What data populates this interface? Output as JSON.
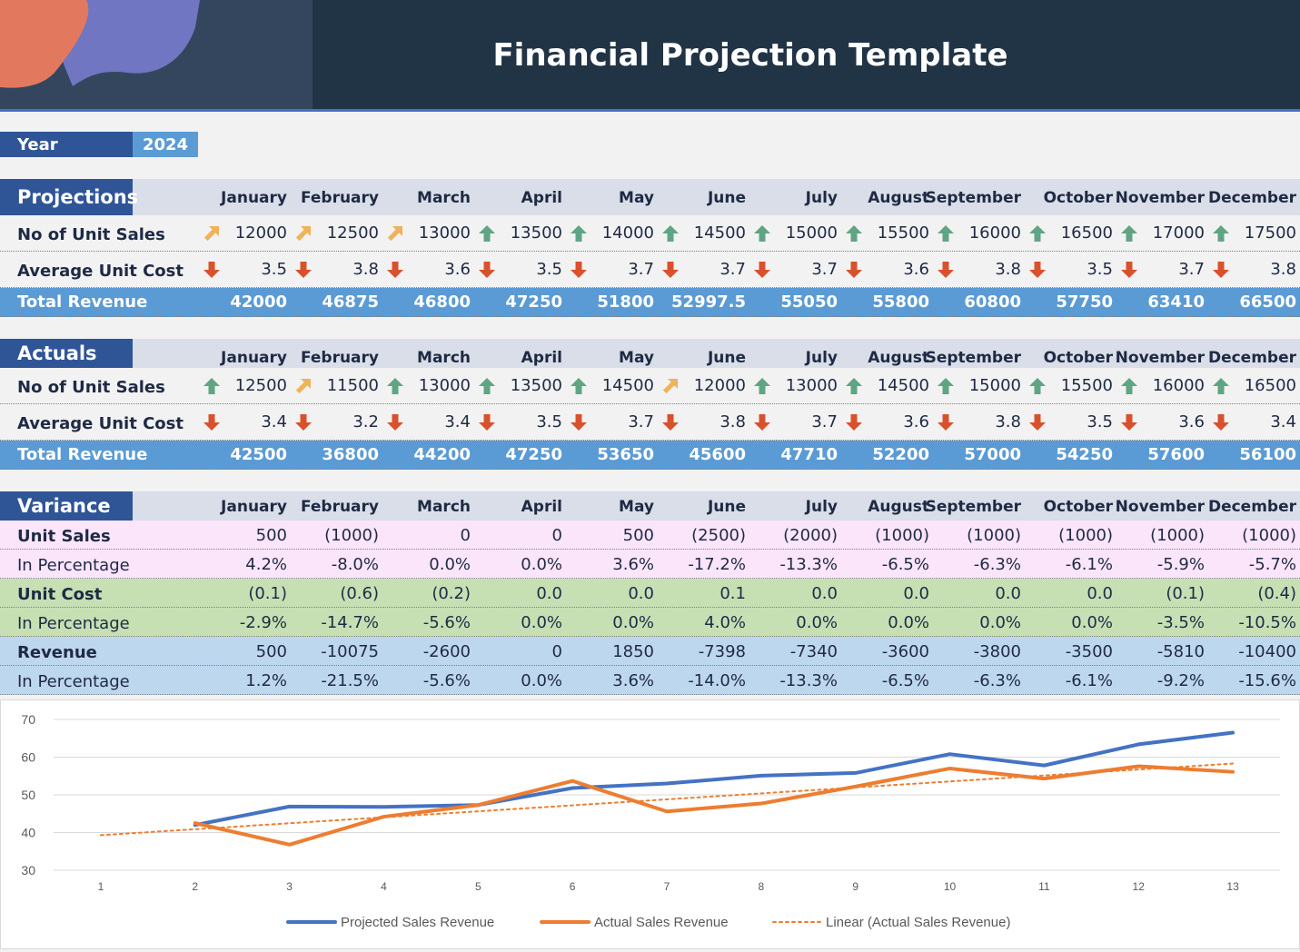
{
  "title": "Financial Projection Template",
  "year": {
    "label": "Year",
    "value": "2024"
  },
  "months": [
    "January",
    "February",
    "March",
    "April",
    "May",
    "June",
    "July",
    "August",
    "September",
    "October",
    "November",
    "December"
  ],
  "projections": {
    "title": "Projections",
    "unit_sales_label": "No of Unit Sales",
    "unit_sales": [
      "12000",
      "12500",
      "13000",
      "13500",
      "14000",
      "14500",
      "15000",
      "15500",
      "16000",
      "16500",
      "17000",
      "17500"
    ],
    "unit_sales_icons": [
      "arrow-up-right-icon",
      "arrow-up-right-icon",
      "arrow-up-right-icon",
      "arrow-up-icon",
      "arrow-up-icon",
      "arrow-up-icon",
      "arrow-up-icon",
      "arrow-up-icon",
      "arrow-up-icon",
      "arrow-up-icon",
      "arrow-up-icon",
      "arrow-up-icon"
    ],
    "unit_cost_label": "Average Unit Cost",
    "unit_cost": [
      "3.5",
      "3.8",
      "3.6",
      "3.5",
      "3.7",
      "3.7",
      "3.7",
      "3.6",
      "3.8",
      "3.5",
      "3.7",
      "3.8"
    ],
    "unit_cost_icons": [
      "arrow-down-icon",
      "arrow-down-icon",
      "arrow-down-icon",
      "arrow-down-icon",
      "arrow-down-icon",
      "arrow-down-icon",
      "arrow-down-icon",
      "arrow-down-icon",
      "arrow-down-icon",
      "arrow-down-icon",
      "arrow-down-icon",
      "arrow-down-icon"
    ],
    "revenue_label": "Total Revenue",
    "revenue": [
      "42000",
      "46875",
      "46800",
      "47250",
      "51800",
      "52997.5",
      "55050",
      "55800",
      "60800",
      "57750",
      "63410",
      "66500"
    ]
  },
  "actuals": {
    "title": "Actuals",
    "unit_sales_label": "No of Unit Sales",
    "unit_sales": [
      "12500",
      "11500",
      "13000",
      "13500",
      "14500",
      "12000",
      "13000",
      "14500",
      "15000",
      "15500",
      "16000",
      "16500"
    ],
    "unit_sales_icons": [
      "arrow-up-icon",
      "arrow-up-right-icon",
      "arrow-up-icon",
      "arrow-up-icon",
      "arrow-up-icon",
      "arrow-up-right-icon",
      "arrow-up-icon",
      "arrow-up-icon",
      "arrow-up-icon",
      "arrow-up-icon",
      "arrow-up-icon",
      "arrow-up-icon"
    ],
    "unit_cost_label": "Average Unit Cost",
    "unit_cost": [
      "3.4",
      "3.2",
      "3.4",
      "3.5",
      "3.7",
      "3.8",
      "3.7",
      "3.6",
      "3.8",
      "3.5",
      "3.6",
      "3.4"
    ],
    "unit_cost_icons": [
      "arrow-down-icon",
      "arrow-down-icon",
      "arrow-down-icon",
      "arrow-down-icon",
      "arrow-down-icon",
      "arrow-down-icon",
      "arrow-down-icon",
      "arrow-down-icon",
      "arrow-down-icon",
      "arrow-down-icon",
      "arrow-down-icon",
      "arrow-down-icon"
    ],
    "revenue_label": "Total Revenue",
    "revenue": [
      "42500",
      "36800",
      "44200",
      "47250",
      "53650",
      "45600",
      "47710",
      "52200",
      "57000",
      "54250",
      "57600",
      "56100"
    ]
  },
  "variance": {
    "title": "Variance",
    "rows": [
      {
        "label": "Unit Sales",
        "values": [
          "500",
          "(1000)",
          "0",
          "0",
          "500",
          "(2500)",
          "(2000)",
          "(1000)",
          "(1000)",
          "(1000)",
          "(1000)",
          "(1000)"
        ]
      },
      {
        "label": "In Percentage",
        "values": [
          "4.2%",
          "-8.0%",
          "0.0%",
          "0.0%",
          "3.6%",
          "-17.2%",
          "-13.3%",
          "-6.5%",
          "-6.3%",
          "-6.1%",
          "-5.9%",
          "-5.7%"
        ]
      },
      {
        "label": "Unit Cost",
        "values": [
          "(0.1)",
          "(0.6)",
          "(0.2)",
          "0.0",
          "0.0",
          "0.1",
          "0.0",
          "0.0",
          "0.0",
          "0.0",
          "(0.1)",
          "(0.4)"
        ]
      },
      {
        "label": "In Percentage",
        "values": [
          "-2.9%",
          "-14.7%",
          "-5.6%",
          "0.0%",
          "0.0%",
          "4.0%",
          "0.0%",
          "0.0%",
          "0.0%",
          "0.0%",
          "-3.5%",
          "-10.5%"
        ]
      },
      {
        "label": "Revenue",
        "values": [
          "500",
          "-10075",
          "-2600",
          "0",
          "1850",
          "-7398",
          "-7340",
          "-3600",
          "-3800",
          "-3500",
          "-5810",
          "-10400"
        ]
      },
      {
        "label": "In Percentage",
        "values": [
          "1.2%",
          "-21.5%",
          "-5.6%",
          "0.0%",
          "3.6%",
          "-14.0%",
          "-13.3%",
          "-6.5%",
          "-6.3%",
          "-6.1%",
          "-9.2%",
          "-15.6%"
        ]
      }
    ]
  },
  "colors": {
    "accent": "#2f5597",
    "total_row": "#5b9bd5",
    "up_arrow": "#5fa584",
    "up_right_arrow": "#f0b25a",
    "down_arrow": "#d9512c",
    "projected_line": "#4472c4",
    "actual_line": "#ed7d31"
  },
  "chart_data": {
    "type": "line",
    "x": [
      1,
      2,
      3,
      4,
      5,
      6,
      7,
      8,
      9,
      10,
      11,
      12,
      13
    ],
    "ylim": [
      30,
      70
    ],
    "yticks": [
      30,
      40,
      50,
      60,
      70
    ],
    "grid": true,
    "legend": "bottom",
    "series": [
      {
        "name": "Projected Sales Revenue",
        "x": [
          2,
          3,
          4,
          5,
          6,
          7,
          8,
          9,
          10,
          11,
          12,
          13
        ],
        "values": [
          42.0,
          46.9,
          46.8,
          47.3,
          51.8,
          53.0,
          55.1,
          55.8,
          60.8,
          57.8,
          63.4,
          66.5
        ]
      },
      {
        "name": "Actual Sales Revenue",
        "x": [
          2,
          3,
          4,
          5,
          6,
          7,
          8,
          9,
          10,
          11,
          12,
          13
        ],
        "values": [
          42.5,
          36.8,
          44.2,
          47.3,
          53.7,
          45.6,
          47.7,
          52.2,
          57.0,
          54.3,
          57.6,
          56.1
        ]
      },
      {
        "name": "Linear (Actual Sales Revenue)",
        "x": [
          1,
          13
        ],
        "values": [
          39.3,
          58.3
        ]
      }
    ]
  }
}
